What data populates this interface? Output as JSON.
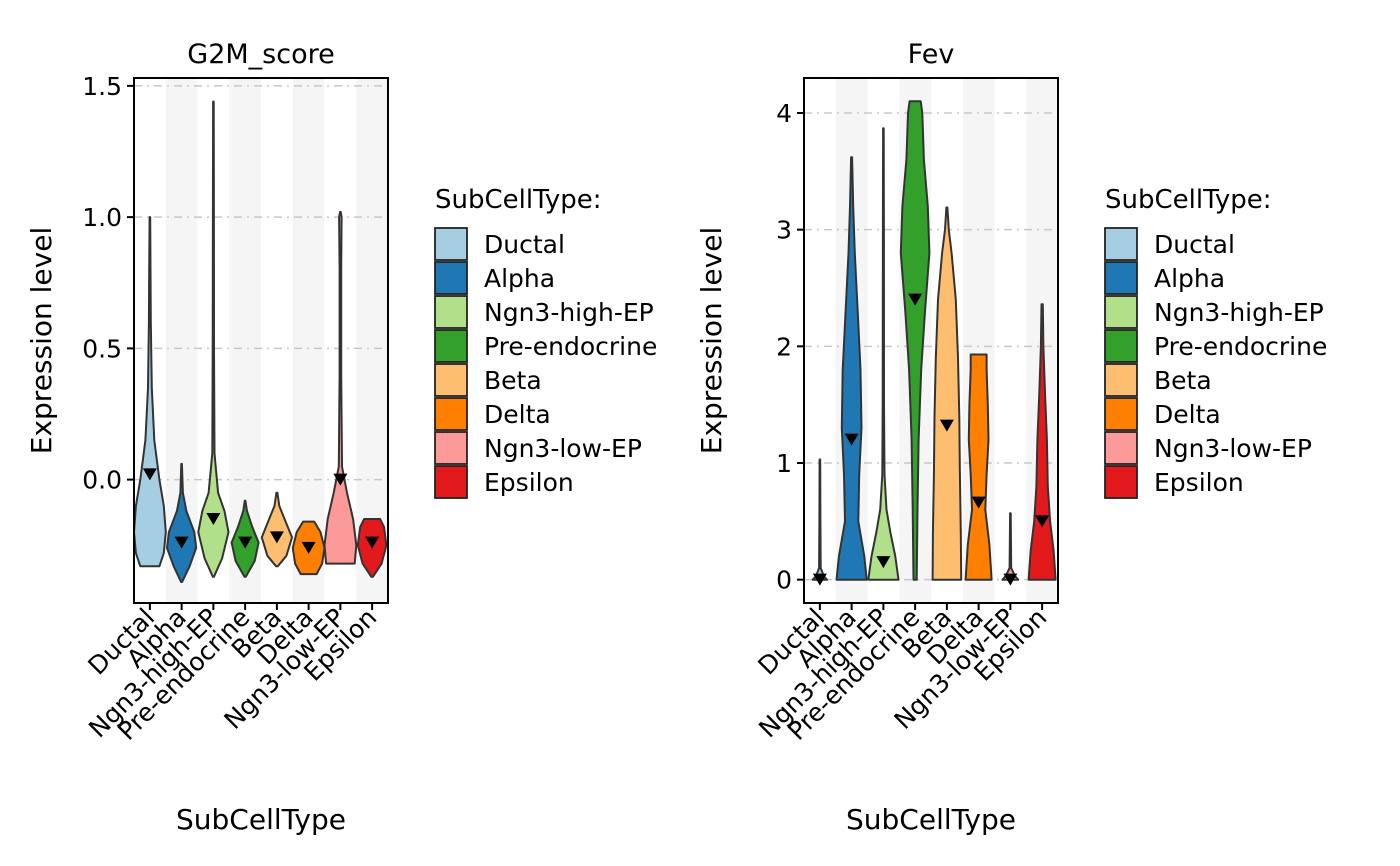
{
  "legend_title": "SubCellType:",
  "groups": [
    "Ductal",
    "Alpha",
    "Ngn3-high-EP",
    "Pre-endocrine",
    "Beta",
    "Delta",
    "Ngn3-low-EP",
    "Epsilon"
  ],
  "colors": [
    "#A6CEE3",
    "#1F78B4",
    "#B2DF8A",
    "#33A02C",
    "#FDBF6F",
    "#FF7F00",
    "#FB9A99",
    "#E31A1C"
  ],
  "chart_data": [
    {
      "type": "violin",
      "title": "G2M_score",
      "xlabel": "SubCellType",
      "ylabel": "Expression level",
      "ylim": [
        -0.47,
        1.53
      ],
      "yticks": [
        0.0,
        0.5,
        1.0,
        1.5
      ],
      "ytick_labels": [
        "0.0",
        "0.5",
        "1.0",
        "1.5"
      ],
      "grid": "horizontal dashed",
      "legend": "right",
      "series": [
        {
          "name": "Ductal",
          "min": -0.33,
          "max": 1.0,
          "median": 0.02,
          "profile": [
            [
              -0.33,
              0.6
            ],
            [
              -0.28,
              0.88
            ],
            [
              -0.2,
              1.0
            ],
            [
              -0.1,
              0.88
            ],
            [
              0.0,
              0.6
            ],
            [
              0.15,
              0.28
            ],
            [
              0.35,
              0.12
            ],
            [
              0.6,
              0.06
            ],
            [
              0.8,
              0.04
            ],
            [
              1.0,
              0.02
            ]
          ]
        },
        {
          "name": "Alpha",
          "min": -0.39,
          "max": 0.06,
          "median": -0.24,
          "profile": [
            [
              -0.39,
              0.03
            ],
            [
              -0.33,
              0.5
            ],
            [
              -0.26,
              0.92
            ],
            [
              -0.2,
              0.8
            ],
            [
              -0.12,
              0.3
            ],
            [
              -0.05,
              0.08
            ],
            [
              0.06,
              0.02
            ]
          ]
        },
        {
          "name": "Ngn3-high-EP",
          "min": -0.37,
          "max": 1.44,
          "median": -0.15,
          "profile": [
            [
              -0.37,
              0.03
            ],
            [
              -0.3,
              0.55
            ],
            [
              -0.2,
              0.95
            ],
            [
              -0.12,
              0.7
            ],
            [
              -0.05,
              0.3
            ],
            [
              0.1,
              0.07
            ],
            [
              0.5,
              0.04
            ],
            [
              1.0,
              0.03
            ],
            [
              1.44,
              0.02
            ]
          ]
        },
        {
          "name": "Pre-endocrine",
          "min": -0.37,
          "max": -0.08,
          "median": -0.24,
          "profile": [
            [
              -0.37,
              0.04
            ],
            [
              -0.31,
              0.6
            ],
            [
              -0.24,
              0.85
            ],
            [
              -0.18,
              0.45
            ],
            [
              -0.12,
              0.12
            ],
            [
              -0.08,
              0.02
            ]
          ]
        },
        {
          "name": "Beta",
          "min": -0.33,
          "max": -0.05,
          "median": -0.22,
          "profile": [
            [
              -0.33,
              0.05
            ],
            [
              -0.29,
              0.6
            ],
            [
              -0.22,
              0.95
            ],
            [
              -0.16,
              0.55
            ],
            [
              -0.1,
              0.15
            ],
            [
              -0.05,
              0.03
            ]
          ]
        },
        {
          "name": "Delta",
          "min": -0.36,
          "max": -0.16,
          "median": -0.26,
          "profile": [
            [
              -0.36,
              0.5
            ],
            [
              -0.32,
              0.85
            ],
            [
              -0.26,
              1.0
            ],
            [
              -0.2,
              0.75
            ],
            [
              -0.16,
              0.35
            ]
          ]
        },
        {
          "name": "Ngn3-low-EP",
          "min": -0.32,
          "max": 1.02,
          "median": 0.0,
          "profile": [
            [
              -0.32,
              0.9
            ],
            [
              -0.25,
              1.0
            ],
            [
              -0.15,
              0.8
            ],
            [
              -0.05,
              0.42
            ],
            [
              0.05,
              0.1
            ],
            [
              0.4,
              0.05
            ],
            [
              0.8,
              0.05
            ],
            [
              1.0,
              0.08
            ],
            [
              1.02,
              0.02
            ]
          ]
        },
        {
          "name": "Epsilon",
          "min": -0.37,
          "max": -0.15,
          "median": -0.24,
          "profile": [
            [
              -0.37,
              0.05
            ],
            [
              -0.32,
              0.6
            ],
            [
              -0.25,
              0.9
            ],
            [
              -0.18,
              0.75
            ],
            [
              -0.15,
              0.5
            ]
          ]
        }
      ]
    },
    {
      "type": "violin",
      "title": "Fev",
      "xlabel": "SubCellType",
      "ylabel": "Expression level",
      "ylim": [
        -0.2,
        4.3
      ],
      "yticks": [
        0,
        1,
        2,
        3,
        4
      ],
      "ytick_labels": [
        "0",
        "1",
        "2",
        "3",
        "4"
      ],
      "grid": "horizontal dashed",
      "legend": "right",
      "series": [
        {
          "name": "Ductal",
          "min": 0.0,
          "max": 1.03,
          "median": 0.0,
          "profile": [
            [
              0.0,
              0.45
            ],
            [
              0.03,
              0.25
            ],
            [
              0.1,
              0.05
            ],
            [
              0.5,
              0.03
            ],
            [
              1.03,
              0.02
            ]
          ]
        },
        {
          "name": "Alpha",
          "min": 0.0,
          "max": 3.62,
          "median": 1.2,
          "profile": [
            [
              0.0,
              0.95
            ],
            [
              0.2,
              0.8
            ],
            [
              0.5,
              0.42
            ],
            [
              0.9,
              0.48
            ],
            [
              1.3,
              0.62
            ],
            [
              1.8,
              0.56
            ],
            [
              2.3,
              0.38
            ],
            [
              2.8,
              0.2
            ],
            [
              3.2,
              0.1
            ],
            [
              3.62,
              0.03
            ]
          ]
        },
        {
          "name": "Ngn3-high-EP",
          "min": 0.0,
          "max": 3.87,
          "median": 0.15,
          "profile": [
            [
              0.0,
              0.95
            ],
            [
              0.2,
              0.75
            ],
            [
              0.4,
              0.45
            ],
            [
              0.6,
              0.2
            ],
            [
              0.9,
              0.07
            ],
            [
              1.5,
              0.04
            ],
            [
              3.0,
              0.03
            ],
            [
              3.87,
              0.02
            ]
          ]
        },
        {
          "name": "Pre-endocrine",
          "min": 0.0,
          "max": 4.1,
          "median": 2.4,
          "profile": [
            [
              0.0,
              0.1
            ],
            [
              0.6,
              0.15
            ],
            [
              1.2,
              0.22
            ],
            [
              1.8,
              0.38
            ],
            [
              2.3,
              0.62
            ],
            [
              2.8,
              0.9
            ],
            [
              3.2,
              0.8
            ],
            [
              3.6,
              0.55
            ],
            [
              4.0,
              0.45
            ],
            [
              4.1,
              0.35
            ]
          ]
        },
        {
          "name": "Beta",
          "min": 0.0,
          "max": 3.19,
          "median": 1.32,
          "profile": [
            [
              0.0,
              0.9
            ],
            [
              0.4,
              0.88
            ],
            [
              0.9,
              0.82
            ],
            [
              1.4,
              0.78
            ],
            [
              1.9,
              0.7
            ],
            [
              2.4,
              0.56
            ],
            [
              2.8,
              0.3
            ],
            [
              3.0,
              0.12
            ],
            [
              3.19,
              0.03
            ]
          ]
        },
        {
          "name": "Delta",
          "min": 0.0,
          "max": 1.93,
          "median": 0.66,
          "profile": [
            [
              0.0,
              0.82
            ],
            [
              0.3,
              0.68
            ],
            [
              0.6,
              0.42
            ],
            [
              0.9,
              0.5
            ],
            [
              1.2,
              0.62
            ],
            [
              1.5,
              0.58
            ],
            [
              1.8,
              0.5
            ],
            [
              1.93,
              0.5
            ]
          ]
        },
        {
          "name": "Ngn3-low-EP",
          "min": 0.0,
          "max": 0.57,
          "median": 0.0,
          "profile": [
            [
              0.0,
              0.5
            ],
            [
              0.03,
              0.3
            ],
            [
              0.1,
              0.05
            ],
            [
              0.57,
              0.02
            ]
          ]
        },
        {
          "name": "Epsilon",
          "min": 0.0,
          "max": 2.36,
          "median": 0.5,
          "profile": [
            [
              0.0,
              0.85
            ],
            [
              0.25,
              0.72
            ],
            [
              0.5,
              0.5
            ],
            [
              0.8,
              0.36
            ],
            [
              1.2,
              0.3
            ],
            [
              1.6,
              0.18
            ],
            [
              2.0,
              0.08
            ],
            [
              2.36,
              0.04
            ]
          ]
        }
      ]
    }
  ]
}
